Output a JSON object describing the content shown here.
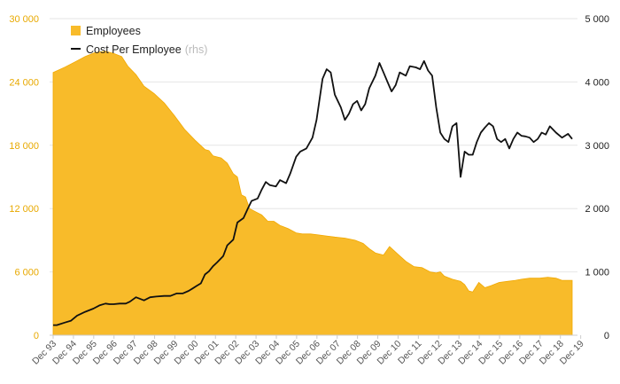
{
  "chart_data": {
    "type": "area",
    "grid": "horizontal",
    "legend_position": "top-left",
    "colors": {
      "employees": "#f8bb2a",
      "employees_edge": "#f1a800",
      "cost": "#111111",
      "grid": "#e6e6e6",
      "left_axis_text": "#e8a900",
      "right_axis_text": "#222222"
    },
    "left_axis": {
      "range": [
        0,
        30000
      ],
      "ticks": [
        0,
        6000,
        12000,
        18000,
        24000,
        30000
      ],
      "tick_labels": [
        "0",
        "6 000",
        "12 000",
        "18 000",
        "24 000",
        "30 000"
      ]
    },
    "right_axis": {
      "range": [
        0,
        5000
      ],
      "ticks": [
        0,
        1000,
        2000,
        3000,
        4000,
        5000
      ],
      "tick_labels": [
        "0",
        "1 000",
        "2 000",
        "3 000",
        "4 000",
        "5 000"
      ]
    },
    "x_labels": [
      "Dec 93",
      "Dec 94",
      "Dec 95",
      "Dec 96",
      "Dec 97",
      "Dec 98",
      "Dec 99",
      "Dec 00",
      "Dec 01",
      "Dec 02",
      "Dec 03",
      "Dec 04",
      "Dec 05",
      "Dec 06",
      "Dec 07",
      "Dec 08",
      "Dec 09",
      "Dec 10",
      "Dec 11",
      "Dec 12",
      "Dec 13",
      "Dec 14",
      "Dec 15",
      "Dec 16",
      "Dec 17",
      "Dec 18",
      "Dec 19"
    ],
    "series": [
      {
        "name": "Employees",
        "axis": "left",
        "kind": "area",
        "points": [
          [
            1993.92,
            24900
          ],
          [
            1994.5,
            25400
          ],
          [
            1995.0,
            25900
          ],
          [
            1995.5,
            26400
          ],
          [
            1996.0,
            26800
          ],
          [
            1996.5,
            26900
          ],
          [
            1996.9,
            26700
          ],
          [
            1997.3,
            26400
          ],
          [
            1997.6,
            25500
          ],
          [
            1998.0,
            24700
          ],
          [
            1998.4,
            23600
          ],
          [
            1998.9,
            22900
          ],
          [
            1999.4,
            22000
          ],
          [
            1999.9,
            20800
          ],
          [
            2000.4,
            19500
          ],
          [
            2000.9,
            18500
          ],
          [
            2001.4,
            17600
          ],
          [
            2001.6,
            17500
          ],
          [
            2001.8,
            17000
          ],
          [
            2002.2,
            16800
          ],
          [
            2002.5,
            16300
          ],
          [
            2002.8,
            15300
          ],
          [
            2003.0,
            15000
          ],
          [
            2003.2,
            13300
          ],
          [
            2003.4,
            13100
          ],
          [
            2003.6,
            12000
          ],
          [
            2003.9,
            11700
          ],
          [
            2004.2,
            11400
          ],
          [
            2004.5,
            10800
          ],
          [
            2004.8,
            10800
          ],
          [
            2005.1,
            10400
          ],
          [
            2005.5,
            10100
          ],
          [
            2005.9,
            9700
          ],
          [
            2006.2,
            9600
          ],
          [
            2006.6,
            9600
          ],
          [
            2007.0,
            9500
          ],
          [
            2007.4,
            9400
          ],
          [
            2007.8,
            9300
          ],
          [
            2008.3,
            9200
          ],
          [
            2008.8,
            9000
          ],
          [
            2009.2,
            8700
          ],
          [
            2009.5,
            8200
          ],
          [
            2009.8,
            7800
          ],
          [
            2010.2,
            7600
          ],
          [
            2010.5,
            8400
          ],
          [
            2010.9,
            7700
          ],
          [
            2011.3,
            7000
          ],
          [
            2011.7,
            6500
          ],
          [
            2012.1,
            6400
          ],
          [
            2012.5,
            6000
          ],
          [
            2012.8,
            5900
          ],
          [
            2013.0,
            6000
          ],
          [
            2013.2,
            5600
          ],
          [
            2013.6,
            5300
          ],
          [
            2014.0,
            5100
          ],
          [
            2014.2,
            4800
          ],
          [
            2014.4,
            4200
          ],
          [
            2014.6,
            4100
          ],
          [
            2014.9,
            5000
          ],
          [
            2015.2,
            4500
          ],
          [
            2015.5,
            4700
          ],
          [
            2015.9,
            5000
          ],
          [
            2016.3,
            5100
          ],
          [
            2016.7,
            5200
          ],
          [
            2017.0,
            5300
          ],
          [
            2017.4,
            5400
          ],
          [
            2017.9,
            5400
          ],
          [
            2018.3,
            5500
          ],
          [
            2018.7,
            5400
          ],
          [
            2019.0,
            5200
          ],
          [
            2019.5,
            5200
          ]
        ]
      },
      {
        "name": "Cost Per Employee",
        "note": "(rhs)",
        "axis": "right",
        "kind": "line",
        "points": [
          [
            1993.92,
            160
          ],
          [
            1994.1,
            160
          ],
          [
            1994.5,
            200
          ],
          [
            1994.8,
            230
          ],
          [
            1995.1,
            310
          ],
          [
            1995.5,
            370
          ],
          [
            1995.9,
            420
          ],
          [
            1996.2,
            470
          ],
          [
            1996.5,
            500
          ],
          [
            1996.7,
            490
          ],
          [
            1996.9,
            490
          ],
          [
            1997.2,
            500
          ],
          [
            1997.5,
            500
          ],
          [
            1997.7,
            530
          ],
          [
            1998.0,
            600
          ],
          [
            1998.4,
            550
          ],
          [
            1998.7,
            600
          ],
          [
            1999.0,
            610
          ],
          [
            1999.4,
            620
          ],
          [
            1999.7,
            620
          ],
          [
            2000.0,
            660
          ],
          [
            2000.3,
            660
          ],
          [
            2000.6,
            700
          ],
          [
            2000.8,
            740
          ],
          [
            2001.0,
            780
          ],
          [
            2001.2,
            820
          ],
          [
            2001.4,
            960
          ],
          [
            2001.6,
            1010
          ],
          [
            2001.8,
            1090
          ],
          [
            2002.0,
            1150
          ],
          [
            2002.3,
            1250
          ],
          [
            2002.5,
            1420
          ],
          [
            2002.8,
            1510
          ],
          [
            2003.0,
            1780
          ],
          [
            2003.3,
            1850
          ],
          [
            2003.5,
            1990
          ],
          [
            2003.7,
            2120
          ],
          [
            2004.0,
            2160
          ],
          [
            2004.2,
            2300
          ],
          [
            2004.4,
            2420
          ],
          [
            2004.6,
            2370
          ],
          [
            2004.9,
            2350
          ],
          [
            2005.1,
            2450
          ],
          [
            2005.4,
            2400
          ],
          [
            2005.6,
            2550
          ],
          [
            2005.9,
            2820
          ],
          [
            2006.1,
            2900
          ],
          [
            2006.4,
            2950
          ],
          [
            2006.7,
            3120
          ],
          [
            2006.9,
            3400
          ],
          [
            2007.2,
            4050
          ],
          [
            2007.4,
            4200
          ],
          [
            2007.6,
            4150
          ],
          [
            2007.8,
            3800
          ],
          [
            2008.1,
            3600
          ],
          [
            2008.3,
            3400
          ],
          [
            2008.5,
            3500
          ],
          [
            2008.7,
            3650
          ],
          [
            2008.9,
            3700
          ],
          [
            2009.1,
            3550
          ],
          [
            2009.3,
            3650
          ],
          [
            2009.5,
            3900
          ],
          [
            2009.8,
            4100
          ],
          [
            2010.0,
            4300
          ],
          [
            2010.2,
            4150
          ],
          [
            2010.4,
            4000
          ],
          [
            2010.6,
            3850
          ],
          [
            2010.8,
            3950
          ],
          [
            2011.0,
            4150
          ],
          [
            2011.3,
            4100
          ],
          [
            2011.5,
            4250
          ],
          [
            2011.8,
            4230
          ],
          [
            2012.0,
            4200
          ],
          [
            2012.2,
            4330
          ],
          [
            2012.4,
            4180
          ],
          [
            2012.6,
            4100
          ],
          [
            2012.8,
            3600
          ],
          [
            2013.0,
            3200
          ],
          [
            2013.2,
            3100
          ],
          [
            2013.4,
            3050
          ],
          [
            2013.6,
            3300
          ],
          [
            2013.8,
            3350
          ],
          [
            2014.0,
            2500
          ],
          [
            2014.2,
            2900
          ],
          [
            2014.4,
            2850
          ],
          [
            2014.6,
            2850
          ],
          [
            2014.8,
            3050
          ],
          [
            2015.0,
            3200
          ],
          [
            2015.2,
            3280
          ],
          [
            2015.4,
            3350
          ],
          [
            2015.6,
            3300
          ],
          [
            2015.8,
            3100
          ],
          [
            2016.0,
            3050
          ],
          [
            2016.2,
            3100
          ],
          [
            2016.4,
            2950
          ],
          [
            2016.6,
            3100
          ],
          [
            2016.8,
            3200
          ],
          [
            2017.0,
            3150
          ],
          [
            2017.2,
            3140
          ],
          [
            2017.4,
            3120
          ],
          [
            2017.6,
            3050
          ],
          [
            2017.8,
            3100
          ],
          [
            2018.0,
            3200
          ],
          [
            2018.2,
            3170
          ],
          [
            2018.4,
            3300
          ],
          [
            2018.7,
            3200
          ],
          [
            2019.0,
            3120
          ],
          [
            2019.3,
            3180
          ],
          [
            2019.5,
            3100
          ]
        ]
      }
    ]
  }
}
